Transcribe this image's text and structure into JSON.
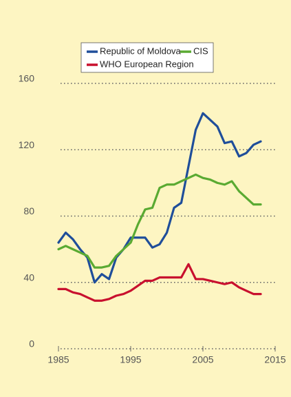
{
  "chart_data": {
    "type": "line",
    "x": [
      1985,
      1986,
      1987,
      1988,
      1989,
      1990,
      1991,
      1992,
      1993,
      1994,
      1995,
      1996,
      1997,
      1998,
      1999,
      2000,
      2001,
      2002,
      2003,
      2004,
      2005,
      2006,
      2007,
      2008,
      2009,
      2010,
      2011,
      2012,
      2013
    ],
    "series": [
      {
        "name": "Republic of Moldova",
        "color": "#1f4e9a",
        "values": [
          64,
          70,
          66,
          60,
          55,
          40,
          45,
          42,
          55,
          60,
          67,
          67,
          67,
          61,
          63,
          70,
          85,
          88,
          110,
          132,
          142,
          138,
          134,
          124,
          125,
          116,
          118,
          123,
          125
        ]
      },
      {
        "name": "CIS",
        "color": "#5aaa32",
        "values": [
          60,
          62,
          60,
          58,
          56,
          49,
          49,
          50,
          56,
          60,
          64,
          75,
          84,
          85,
          97,
          99,
          99,
          101,
          103,
          105,
          103,
          102,
          100,
          99,
          101,
          95,
          91,
          87,
          87
        ]
      },
      {
        "name": "WHO European Region",
        "color": "#c8102e",
        "values": [
          36,
          36,
          34,
          33,
          31,
          29,
          29,
          30,
          32,
          33,
          35,
          38,
          41,
          41,
          43,
          43,
          43,
          43,
          51,
          42,
          42,
          41,
          40,
          39,
          40,
          37,
          35,
          33,
          33
        ]
      }
    ],
    "xlim": [
      1985,
      2015
    ],
    "xticks": [
      1985,
      1995,
      2005,
      2015
    ],
    "ylim": [
      0,
      160
    ],
    "yticks": [
      0,
      40,
      80,
      120,
      160
    ],
    "grid": true
  }
}
